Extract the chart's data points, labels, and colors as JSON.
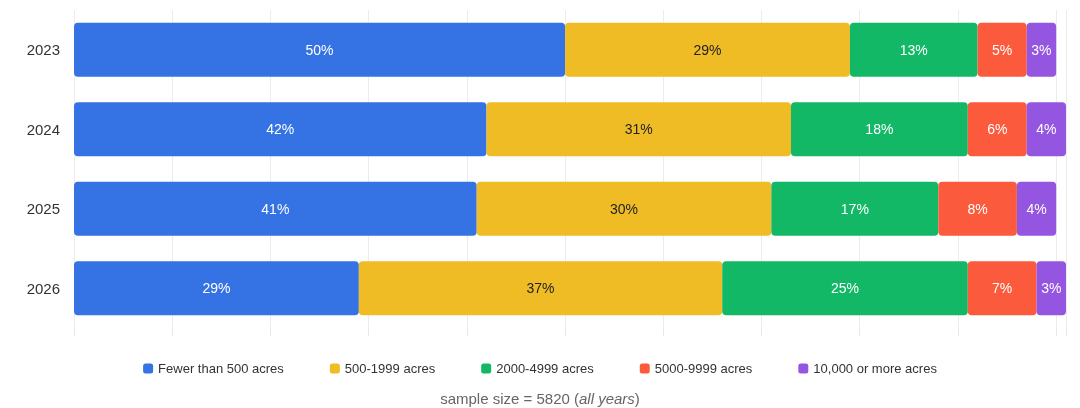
{
  "chart_data": {
    "type": "bar",
    "orientation": "horizontal",
    "stacked": true,
    "categories": [
      "2023",
      "2024",
      "2025",
      "2026"
    ],
    "series": [
      {
        "name": "Fewer than 500 acres",
        "color": "#3572e3",
        "values": [
          50,
          42,
          41,
          29
        ],
        "value_labels": [
          "50%",
          "42%",
          "41%",
          "29%"
        ]
      },
      {
        "name": "500-1999 acres",
        "color": "#f0bc26",
        "values": [
          29,
          31,
          30,
          37
        ],
        "value_labels": [
          "29%",
          "31%",
          "30%",
          "37%"
        ]
      },
      {
        "name": "2000-4999 acres",
        "color": "#12b866",
        "values": [
          13,
          18,
          17,
          25
        ],
        "value_labels": [
          "13%",
          "18%",
          "17%",
          "25%"
        ]
      },
      {
        "name": "5000-9999 acres",
        "color": "#fb5a3c",
        "values": [
          5,
          6,
          8,
          7
        ],
        "value_labels": [
          "5%",
          "6%",
          "8%",
          "7%"
        ]
      },
      {
        "name": "10,000 or more acres",
        "color": "#9455e0",
        "values": [
          3,
          4,
          4,
          3
        ],
        "value_labels": [
          "3%",
          "4%",
          "4%",
          "3%"
        ]
      }
    ],
    "grid": "x",
    "tick_labels": "y",
    "legend": "bottom",
    "annotations": [
      "sample size = 5820 (all years)"
    ]
  }
}
